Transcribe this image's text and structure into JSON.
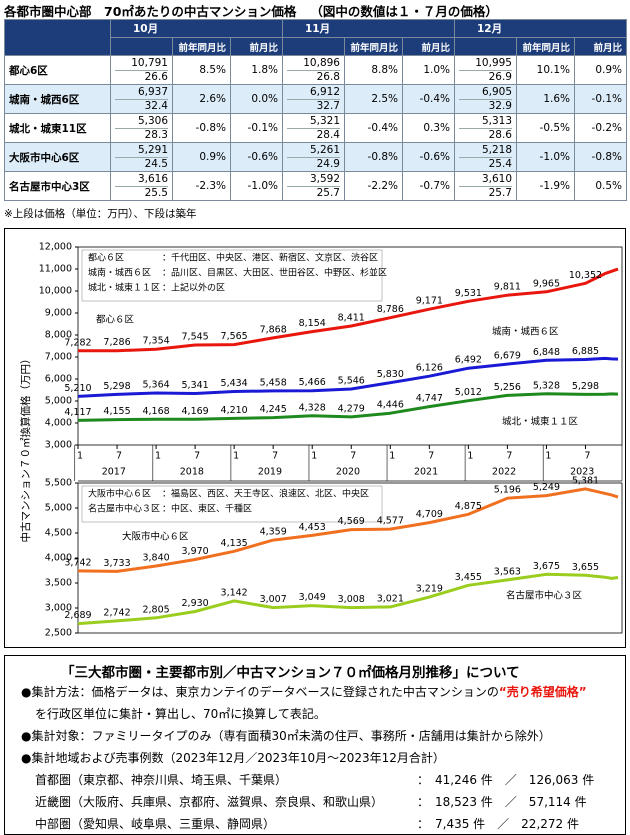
{
  "title": "各都市圏中心部　70㎡あたりの中古マンション価格",
  "subtitle": "（図中の数値は１・７月の価格）",
  "table": {
    "months": [
      "10月",
      "11月",
      "12月"
    ],
    "subheaders": [
      "前年同月比",
      "前月比"
    ],
    "rows": [
      {
        "name": "都心6区",
        "cells": [
          [
            "10,791",
            "26.6",
            "8.5%",
            "1.8%"
          ],
          [
            "10,896",
            "26.8",
            "8.8%",
            "1.0%"
          ],
          [
            "10,995",
            "26.9",
            "10.1%",
            "0.9%"
          ]
        ]
      },
      {
        "name": "城南・城西6区",
        "cells": [
          [
            "6,937",
            "32.4",
            "2.6%",
            "0.0%"
          ],
          [
            "6,912",
            "32.7",
            "2.5%",
            "-0.4%"
          ],
          [
            "6,905",
            "32.9",
            "1.6%",
            "-0.1%"
          ]
        ]
      },
      {
        "name": "城北・城東11区",
        "cells": [
          [
            "5,306",
            "28.3",
            "-0.8%",
            "-0.1%"
          ],
          [
            "5,321",
            "28.4",
            "-0.4%",
            "0.3%"
          ],
          [
            "5,313",
            "28.6",
            "-0.5%",
            "-0.2%"
          ]
        ]
      },
      {
        "name": "大阪市中心6区",
        "cells": [
          [
            "5,291",
            "24.5",
            "0.9%",
            "-0.6%"
          ],
          [
            "5,261",
            "24.9",
            "-0.8%",
            "-0.6%"
          ],
          [
            "5,218",
            "25.4",
            "-1.0%",
            "-0.8%"
          ]
        ]
      },
      {
        "name": "名古屋市中心3区",
        "cells": [
          [
            "3,616",
            "25.5",
            "-2.3%",
            "-1.0%"
          ],
          [
            "3,592",
            "25.7",
            "-2.2%",
            "-0.7%"
          ],
          [
            "3,610",
            "25.7",
            "-1.9%",
            "0.5%"
          ]
        ]
      }
    ]
  },
  "note": "※上段は価格（単位：万円）、下段は築年",
  "y_axis_label": "中古マンション７０㎡換算価格（万円）",
  "chart_data": [
    {
      "type": "line",
      "x": [
        "2017-01",
        "2017-07",
        "2018-01",
        "2018-07",
        "2019-01",
        "2019-07",
        "2020-01",
        "2020-07",
        "2021-01",
        "2021-07",
        "2022-01",
        "2022-07",
        "2023-01",
        "2023-07",
        "2023-10",
        "2023-11",
        "2023-12"
      ],
      "xlim": [
        "2017-01",
        "2023-12"
      ],
      "xticks": [
        {
          "value": "2017-01",
          "label": "1"
        },
        {
          "value": "2017-07",
          "label": "7"
        },
        {
          "value": "2018-01",
          "label": "1"
        },
        {
          "value": "2018-07",
          "label": "7"
        },
        {
          "value": "2019-01",
          "label": "1"
        },
        {
          "value": "2019-07",
          "label": "7"
        },
        {
          "value": "2020-01",
          "label": "1"
        },
        {
          "value": "2020-07",
          "label": "7"
        },
        {
          "value": "2021-01",
          "label": "1"
        },
        {
          "value": "2021-07",
          "label": "7"
        },
        {
          "value": "2022-01",
          "label": "1"
        },
        {
          "value": "2022-07",
          "label": "7"
        },
        {
          "value": "2023-01",
          "label": "1"
        },
        {
          "value": "2023-07",
          "label": "7"
        }
      ],
      "years": [
        "2017",
        "2018",
        "2019",
        "2020",
        "2021",
        "2022",
        "2023"
      ],
      "ylim": [
        3000,
        12000
      ],
      "yticks": [
        {
          "value": 3000,
          "label": "3,000"
        },
        {
          "value": 4000,
          "label": "4,000"
        },
        {
          "value": 5000,
          "label": "5,000"
        },
        {
          "value": 6000,
          "label": "6,000"
        },
        {
          "value": 7000,
          "label": "7,000"
        },
        {
          "value": 8000,
          "label": "8,000"
        },
        {
          "value": 9000,
          "label": "9,000"
        },
        {
          "value": 10000,
          "label": "10,000"
        },
        {
          "value": 11000,
          "label": "11,000"
        },
        {
          "value": 12000,
          "label": "12,000"
        }
      ],
      "series": [
        {
          "name": "都心６区",
          "areas": "：千代田区、中央区、港区、新宿区、文京区、渋谷区",
          "color": "#e8160c",
          "values": [
            7282,
            7286,
            7354,
            7545,
            7565,
            7868,
            8154,
            8411,
            8786,
            9171,
            9531,
            9811,
            9965,
            10352,
            10791,
            10896,
            10995
          ],
          "value_labels": [
            "7,282",
            "7,286",
            "7,354",
            "7,545",
            "7,565",
            "7,868",
            "8,154",
            "8,411",
            "8,786",
            "9,171",
            "9,531",
            "9,811",
            "9,965",
            "10,352",
            null,
            null,
            null
          ]
        },
        {
          "name": "城南・城西６区",
          "areas": "：品川区、目黒区、大田区、世田谷区、中野区、杉並区",
          "color": "#1a1ad6",
          "values": [
            5210,
            5298,
            5364,
            5341,
            5434,
            5458,
            5466,
            5546,
            5830,
            6126,
            6492,
            6679,
            6848,
            6885,
            6937,
            6912,
            6905
          ],
          "value_labels": [
            "5,210",
            "5,298",
            "5,364",
            "5,341",
            "5,434",
            "5,458",
            "5,466",
            "5,546",
            "5,830",
            "6,126",
            "6,492",
            "6,679",
            "6,848",
            "6,885",
            null,
            null,
            null
          ]
        },
        {
          "name": "城北・城東１１区",
          "areas": "：上記以外の区",
          "color": "#1e8a1e",
          "values": [
            4117,
            4155,
            4168,
            4169,
            4210,
            4245,
            4328,
            4279,
            4446,
            4747,
            5012,
            5256,
            5328,
            5298,
            5306,
            5321,
            5313
          ],
          "value_labels": [
            "4,117",
            "4,155",
            "4,168",
            "4,169",
            "4,210",
            "4,245",
            "4,328",
            "4,279",
            "4,446",
            "4,747",
            "5,012",
            "5,256",
            "5,328",
            "5,298",
            null,
            null,
            null
          ]
        }
      ]
    },
    {
      "type": "line",
      "x": [
        "2017-01",
        "2017-07",
        "2018-01",
        "2018-07",
        "2019-01",
        "2019-07",
        "2020-01",
        "2020-07",
        "2021-01",
        "2021-07",
        "2022-01",
        "2022-07",
        "2023-01",
        "2023-07",
        "2023-10",
        "2023-11",
        "2023-12"
      ],
      "xlim": [
        "2017-01",
        "2023-12"
      ],
      "ylim": [
        2500,
        5500
      ],
      "yticks": [
        {
          "value": 2500,
          "label": "2,500"
        },
        {
          "value": 3000,
          "label": "3,000"
        },
        {
          "value": 3500,
          "label": "3,500"
        },
        {
          "value": 4000,
          "label": "4,000"
        },
        {
          "value": 4500,
          "label": "4,500"
        },
        {
          "value": 5000,
          "label": "5,000"
        },
        {
          "value": 5500,
          "label": "5,500"
        }
      ],
      "series": [
        {
          "name": "大阪市中心６区",
          "areas": "：福島区、西区、天王寺区、浪速区、北区、中央区",
          "color": "#f07020",
          "values": [
            3742,
            3733,
            3840,
            3970,
            4135,
            4359,
            4453,
            4569,
            4577,
            4709,
            4875,
            5196,
            5249,
            5381,
            5291,
            5261,
            5218
          ],
          "value_labels": [
            "3,742",
            "3,733",
            "3,840",
            "3,970",
            "4,135",
            "4,359",
            "4,453",
            "4,569",
            "4,577",
            "4,709",
            "4,875",
            "5,196",
            "5,249",
            "5,381",
            null,
            null,
            null
          ]
        },
        {
          "name": "名古屋市中心３区",
          "areas": "：中区、東区、千種区",
          "color": "#9acd1e",
          "values": [
            2689,
            2742,
            2805,
            2930,
            3142,
            3007,
            3049,
            3008,
            3021,
            3219,
            3455,
            3563,
            3675,
            3655,
            3616,
            3592,
            3610
          ],
          "value_labels": [
            "2,689",
            "2,742",
            "2,805",
            "2,930",
            "3,142",
            "3,007",
            "3,049",
            "3,008",
            "3,021",
            "3,219",
            "3,455",
            "3,563",
            "3,675",
            "3,655",
            null,
            null,
            null
          ]
        }
      ]
    }
  ],
  "about": {
    "title": "「三大都市圏・主要都市別／中古マンション７０㎡価格月別推移」について",
    "method": [
      "●集計方法：価格データは、東京カンテイのデータベースに登録された中古マンションの",
      "“売り希望価格”",
      "を行政区単位に集計・算出し、70㎡に換算して表記。"
    ],
    "target": "●集計対象：ファミリータイプのみ（専有面積30㎡未満の住戸、事務所・店舗用は集計から除外）",
    "areas_heading": "●集計地域および売事例数（2023年12月／2023年10月～2023年12月合計）",
    "regions": [
      {
        "name": "首都圏（東京都、神奈川県、埼玉県、千葉県）",
        "counts": "：　41,246 件　／　126,063 件"
      },
      {
        "name": "近畿圏（大阪府、兵庫県、京都府、滋賀県、奈良県、和歌山県）",
        "counts": "：　18,523 件　／　57,114 件"
      },
      {
        "name": "中部圏（愛知県、岐阜県、三重県、静岡県）",
        "counts": "：　7,435 件　／　22,272 件"
      }
    ]
  }
}
